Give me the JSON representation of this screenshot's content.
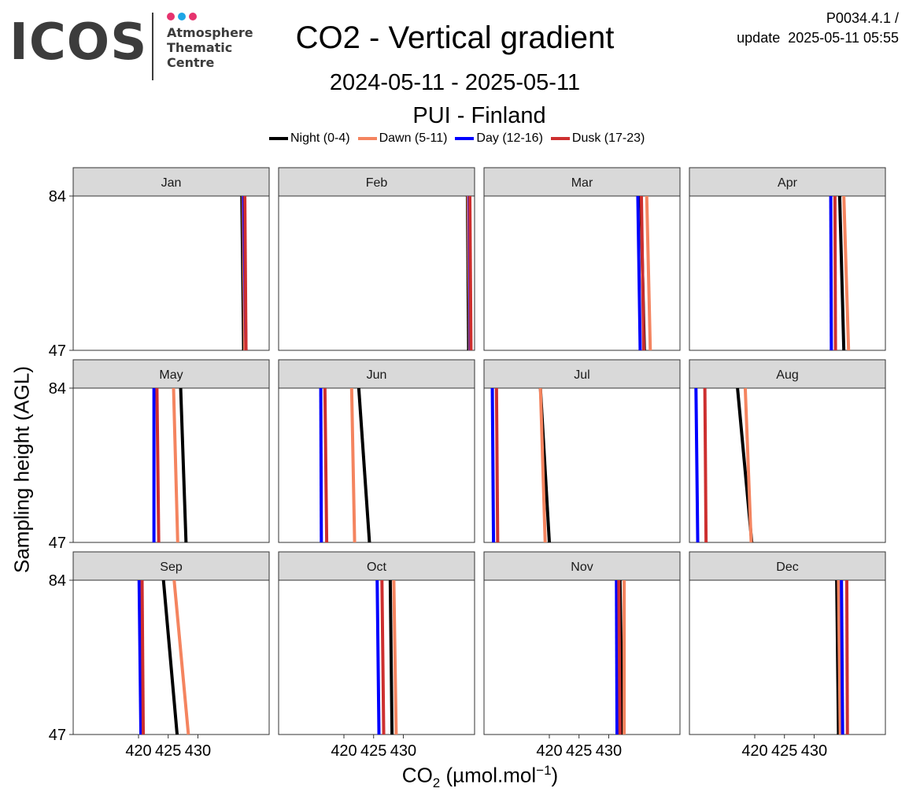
{
  "logo": {
    "text": "ICOS",
    "lines": [
      "Atmosphere",
      "Thematic",
      "Centre"
    ],
    "dot_colors": [
      "#e6336e",
      "#1ea5e6",
      "#e6336e"
    ]
  },
  "header": {
    "title": "CO2 - Vertical gradient",
    "code": "P0034.4.1 /",
    "update": "update  2025-05-11 05:55",
    "date_range": "2024-05-11 - 2025-05-11",
    "station": "PUI - Finland"
  },
  "axes": {
    "xlabel_main": "CO",
    "xlabel_sub": "2",
    "xlabel_unit": " (µmol.mol",
    "xlabel_sup": "−1",
    "xlabel_close": ")",
    "ylabel": "Sampling height (AGL)"
  },
  "chart_data": {
    "type": "line",
    "xlim": [
      409,
      442
    ],
    "ylim": [
      47,
      84
    ],
    "x_ticks": [
      "420",
      "425",
      "430"
    ],
    "x_tick_values": [
      420,
      425,
      430
    ],
    "y_ticks": [
      "47",
      "84"
    ],
    "y_tick_values": [
      47,
      84
    ],
    "heights": [
      84,
      47
    ],
    "series": [
      {
        "name": "Night (0-4)",
        "color": "#000000"
      },
      {
        "name": "Dawn (5-11)",
        "color": "#f4845f"
      },
      {
        "name": "Day (12-16)",
        "color": "#0000ff"
      },
      {
        "name": "Dusk (17-23)",
        "color": "#cd2f2f"
      }
    ],
    "panels": [
      {
        "label": "Jan",
        "values": [
          [
            437.4,
            437.7
          ],
          [
            437.6,
            437.9
          ],
          [
            437.7,
            438.1
          ],
          [
            437.9,
            438.1
          ]
        ]
      },
      {
        "label": "Feb",
        "values": [
          [
            440.8,
            441.0
          ],
          [
            440.9,
            441.2
          ],
          [
            441.1,
            441.3
          ],
          [
            441.2,
            441.4
          ]
        ]
      },
      {
        "label": "Mar",
        "values": [
          [
            435.4,
            436.0
          ],
          [
            436.4,
            437.0
          ],
          [
            434.9,
            435.3
          ],
          [
            435.5,
            435.9
          ]
        ]
      },
      {
        "label": "Apr",
        "values": [
          [
            434.3,
            435.0
          ],
          [
            435.0,
            435.8
          ],
          [
            432.8,
            432.9
          ],
          [
            433.5,
            433.6
          ]
        ]
      },
      {
        "label": "May",
        "values": [
          [
            427.1,
            428.0
          ],
          [
            425.9,
            426.6
          ],
          [
            422.6,
            422.6
          ],
          [
            423.1,
            423.4
          ]
        ]
      },
      {
        "label": "Jun",
        "values": [
          [
            422.5,
            424.3
          ],
          [
            421.3,
            421.8
          ],
          [
            416.1,
            416.2
          ],
          [
            416.8,
            417.1
          ]
        ]
      },
      {
        "label": "Jul",
        "values": [
          [
            418.5,
            420.0
          ],
          [
            418.5,
            419.3
          ],
          [
            410.4,
            410.6
          ],
          [
            411.1,
            411.3
          ]
        ]
      },
      {
        "label": "Aug",
        "values": [
          [
            417.1,
            419.5
          ],
          [
            418.4,
            419.4
          ],
          [
            410.1,
            410.4
          ],
          [
            411.6,
            411.8
          ]
        ]
      },
      {
        "label": "Sep",
        "values": [
          [
            424.2,
            426.5
          ],
          [
            426.0,
            428.4
          ],
          [
            420.1,
            420.4
          ],
          [
            420.6,
            420.8
          ]
        ]
      },
      {
        "label": "Oct",
        "values": [
          [
            427.8,
            428.1
          ],
          [
            428.4,
            428.8
          ],
          [
            425.6,
            425.9
          ],
          [
            426.4,
            426.7
          ]
        ]
      },
      {
        "label": "Nov",
        "values": [
          [
            431.9,
            432.3
          ],
          [
            432.6,
            432.6
          ],
          [
            431.3,
            431.4
          ],
          [
            431.7,
            431.9
          ]
        ]
      },
      {
        "label": "Dec",
        "values": [
          [
            433.8,
            434.1
          ],
          [
            434.1,
            434.4
          ],
          [
            434.6,
            434.8
          ],
          [
            435.5,
            435.6
          ]
        ]
      }
    ]
  }
}
